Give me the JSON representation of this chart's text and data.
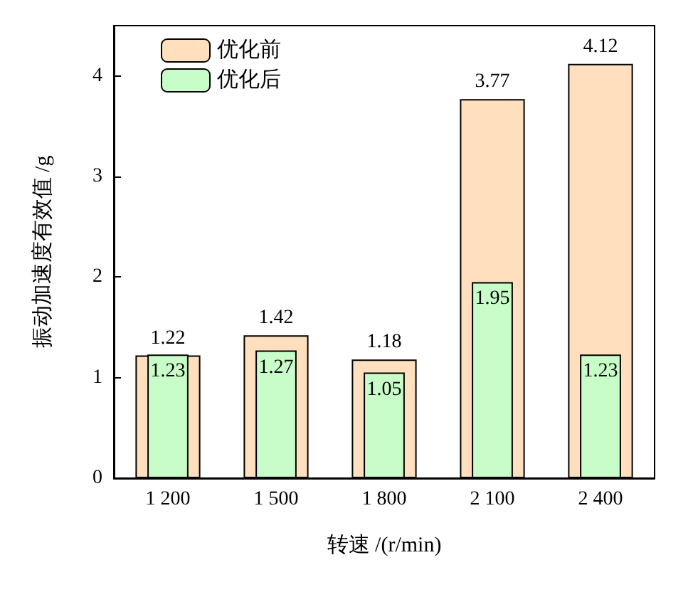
{
  "chart_data": {
    "type": "bar",
    "xlabel": "转速 /(r/min)",
    "ylabel": "振动加速度有效值 /g",
    "categories": [
      "1 200",
      "1 500",
      "1 800",
      "2 100",
      "2 400"
    ],
    "series": [
      {
        "name": "优化前",
        "color": "#ffdfbd",
        "values": [
          1.22,
          1.42,
          1.18,
          3.77,
          4.12
        ]
      },
      {
        "name": "优化后",
        "color": "#c8fcc8",
        "values": [
          1.23,
          1.27,
          1.05,
          1.95,
          1.23
        ]
      }
    ],
    "ylim": [
      0,
      4.5
    ],
    "yticks": [
      0,
      1,
      2,
      3,
      4
    ],
    "data_labels": true,
    "legend": "top left",
    "grid": false
  }
}
